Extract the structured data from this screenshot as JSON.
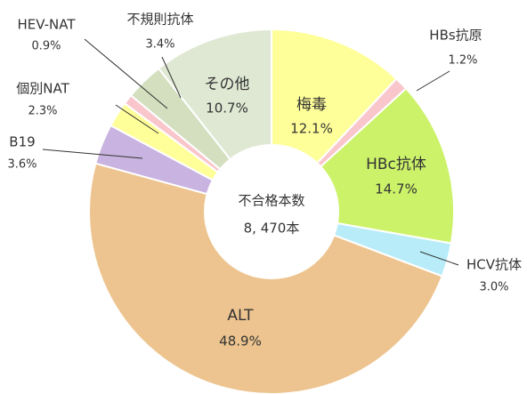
{
  "chart_data": {
    "type": "donut",
    "categories": [
      "梅毒",
      "HBs抗原",
      "HBc抗体",
      "HCV抗体",
      "ALT",
      "B19",
      "個別NAT",
      "HEV-NAT",
      "不規則抗体",
      "その他"
    ],
    "values": [
      12.1,
      1.2,
      14.7,
      3.0,
      48.9,
      3.6,
      2.3,
      0.9,
      3.4,
      10.7
    ],
    "value_labels": [
      "12.1%",
      "1.2%",
      "14.7%",
      "3.0%",
      "48.9%",
      "3.6%",
      "2.3%",
      "0.9%",
      "3.4%",
      "10.7%"
    ],
    "colors": [
      "#ffff99",
      "#f9c6cc",
      "#ccf26a",
      "#b7ecf8",
      "#edc48f",
      "#c9b3e0",
      "#ffff99",
      "#f9c6cc",
      "#d3dfbf",
      "#dfe8d3"
    ],
    "center_label": "不合格本数",
    "center_value": "8, 470本"
  }
}
